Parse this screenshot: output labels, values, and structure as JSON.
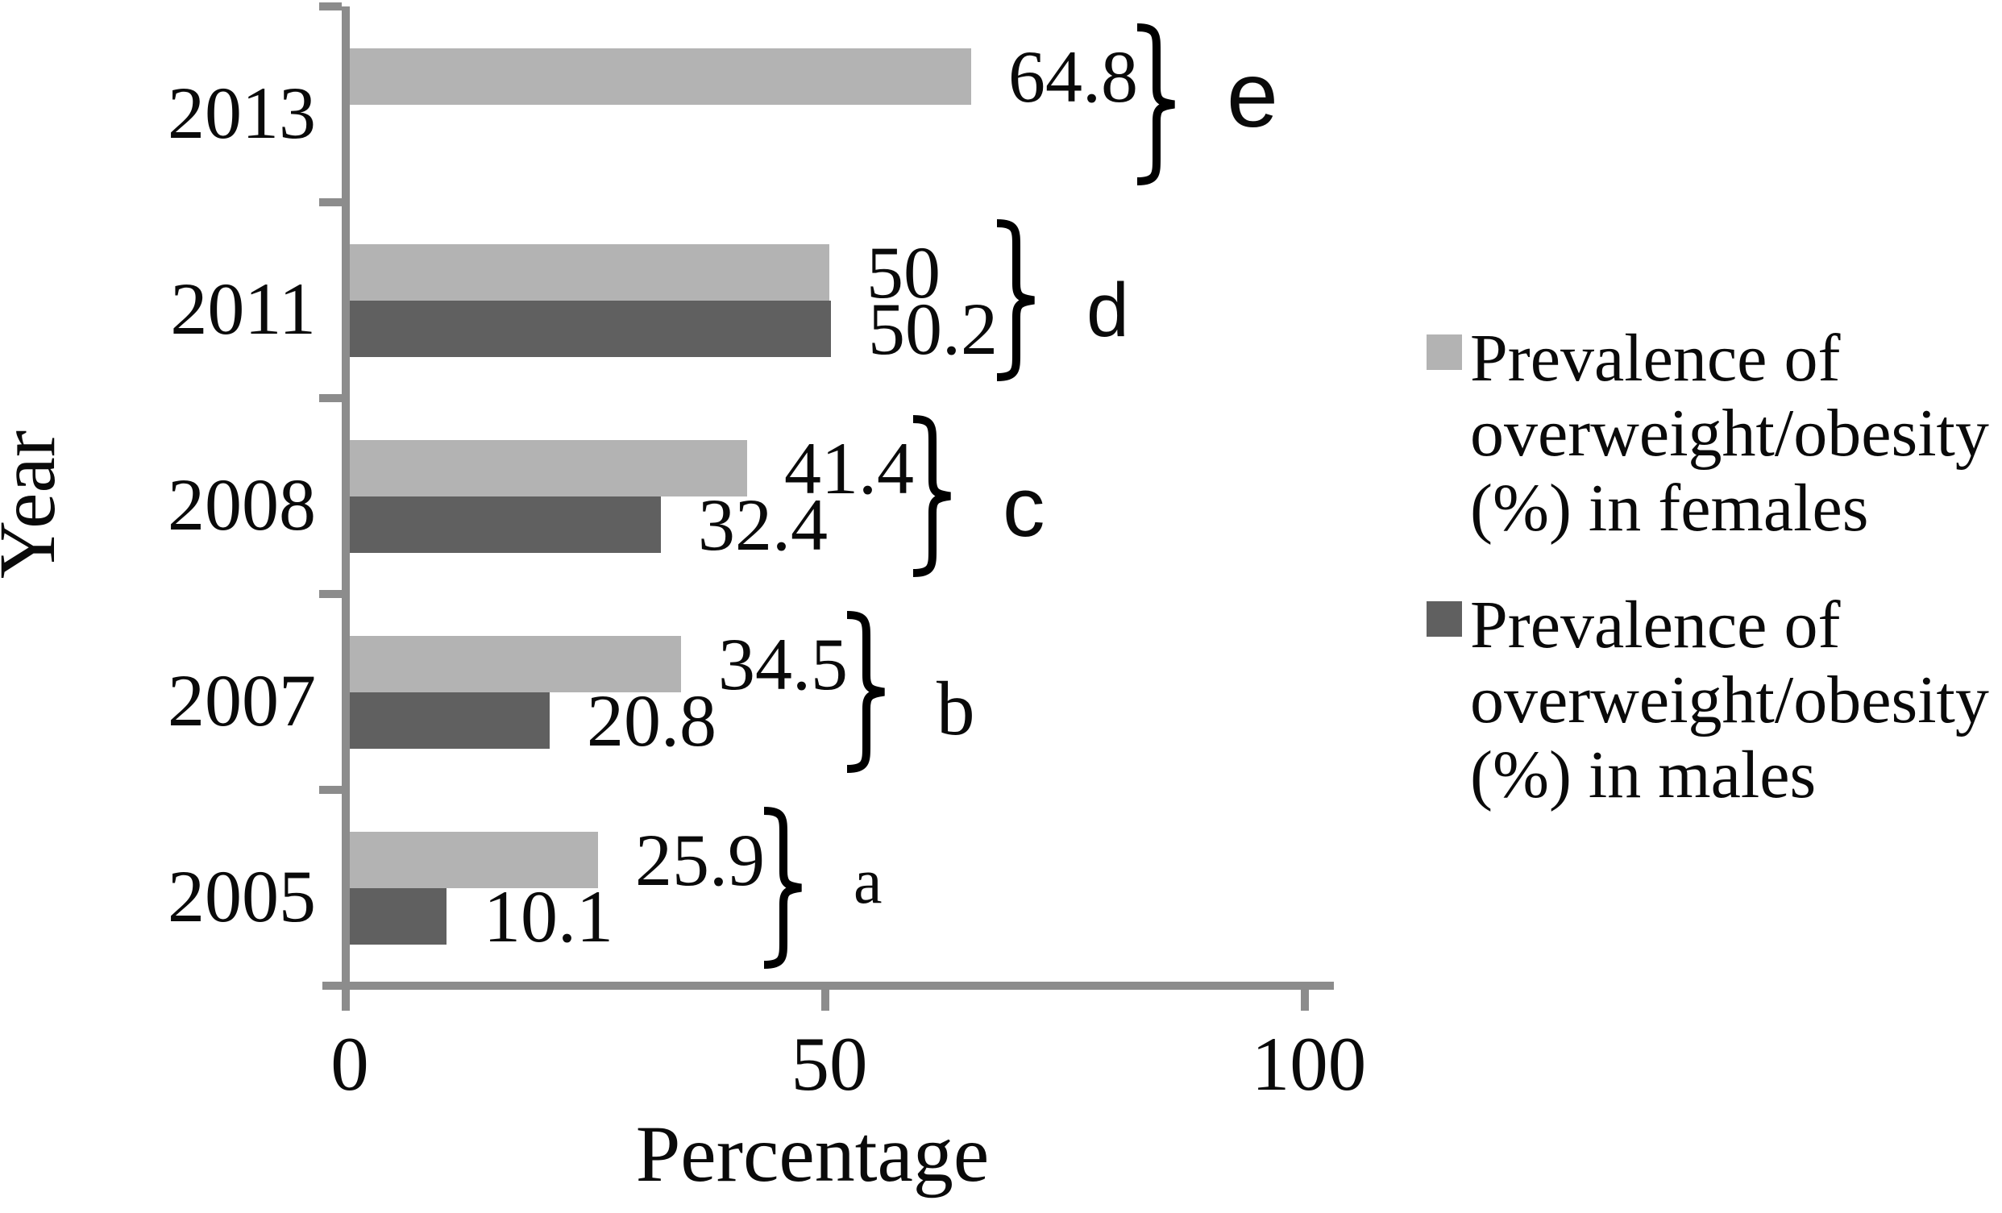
{
  "chart_data": {
    "type": "bar",
    "orientation": "horizontal",
    "xlabel": "Percentage",
    "ylabel": "Year",
    "xlim": [
      0,
      100
    ],
    "x_ticks": [
      "0",
      "50",
      "100"
    ],
    "grid": false,
    "legend_position": "right",
    "categories": [
      "2013",
      "2011",
      "2008",
      "2007",
      "2005"
    ],
    "series": [
      {
        "name": "Prevalence of overweight/obesity (%) in females",
        "color": "#b3b3b3",
        "values": [
          64.8,
          50,
          41.4,
          34.5,
          25.9
        ],
        "labels": [
          "64.8",
          "50",
          "41.4",
          "34.5",
          "25.9"
        ]
      },
      {
        "name": "Prevalence of overweight/obesity (%) in males",
        "color": "#606060",
        "values": [
          null,
          50.2,
          32.4,
          20.8,
          10.1
        ],
        "labels": [
          "",
          "50.2",
          "32.4",
          "20.8",
          "10.1"
        ]
      }
    ],
    "group_annotations": [
      {
        "category": "2013",
        "letter": "e"
      },
      {
        "category": "2011",
        "letter": "d"
      },
      {
        "category": "2008",
        "letter": "c"
      },
      {
        "category": "2007",
        "letter": "b"
      },
      {
        "category": "2005",
        "letter": "a"
      }
    ]
  },
  "legend": {
    "items": [
      {
        "swatch_color": "#b3b3b3",
        "lines": [
          "Prevalence of",
          "overweight/obesity",
          "(%) in females"
        ]
      },
      {
        "swatch_color": "#606060",
        "lines": [
          "Prevalence of",
          "overweight/obesity",
          "(%) in males"
        ]
      }
    ]
  },
  "colors": {
    "axis": "#8c8c8c",
    "bar_female": "#b3b3b3",
    "bar_male": "#606060",
    "text": "#0a0a0a"
  }
}
